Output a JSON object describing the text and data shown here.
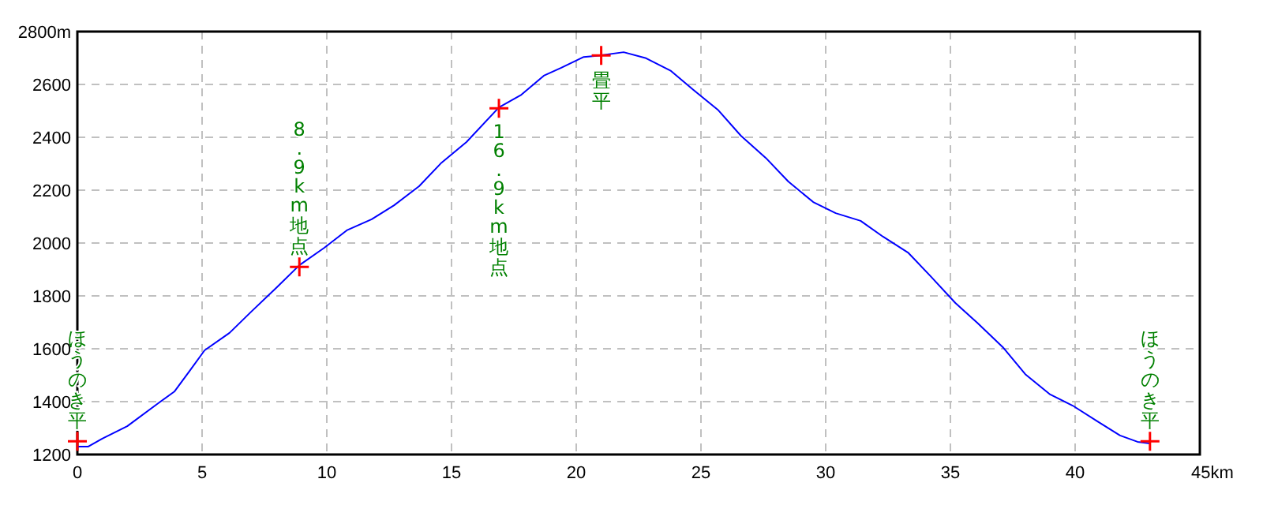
{
  "chart_data": {
    "type": "line",
    "xlim": [
      0,
      45
    ],
    "xticks": [
      0,
      5,
      10,
      15,
      20,
      25,
      30,
      35,
      40,
      {
        "value": 45,
        "label": "45km"
      }
    ],
    "ylim": [
      1200,
      2800
    ],
    "yticks": [
      1200,
      1400,
      1600,
      1800,
      2000,
      2200,
      2400,
      2600,
      {
        "value": 2800,
        "label": "2800m"
      }
    ],
    "grid": true,
    "line_style": "solid",
    "series": [
      {
        "color": "#0000ff",
        "marker": "none",
        "x": [
          0,
          0.44,
          1.0,
          2.0,
          3.2,
          3.9,
          4.5,
          5.1,
          6.1,
          7.0,
          8.0,
          8.9,
          9.9,
          10.8,
          11.8,
          12.7,
          13.7,
          14.6,
          15.6,
          16.9,
          17.8,
          18.7,
          19.4,
          20.3,
          21.0,
          21.9,
          22.8,
          23.8,
          24.7,
          25.7,
          26.6,
          27.6,
          28.5,
          29.5,
          30.4,
          31.4,
          32.3,
          33.3,
          34.2,
          35.2,
          36.1,
          37.1,
          38.0,
          39.0,
          39.9,
          40.9,
          41.8,
          42.5,
          43.0
        ],
        "values": [
          1230,
          1230,
          1260,
          1307,
          1391,
          1439,
          1516,
          1594,
          1660,
          1743,
          1833,
          1916,
          1982,
          2048,
          2090,
          2143,
          2215,
          2304,
          2382,
          2513,
          2561,
          2633,
          2663,
          2704,
          2710,
          2722,
          2699,
          2651,
          2579,
          2502,
          2406,
          2322,
          2233,
          2155,
          2113,
          2084,
          2024,
          1964,
          1875,
          1773,
          1696,
          1606,
          1504,
          1427,
          1385,
          1325,
          1272,
          1248,
          1242
        ]
      },
      {
        "type": "scatter",
        "color": "#ff0000",
        "marker": "cross",
        "x": [
          0,
          8.9,
          16.9,
          21.0,
          43.0
        ],
        "values": [
          1250,
          1910,
          2510,
          2710,
          1250
        ]
      }
    ],
    "annotations": [
      {
        "text": "ほうのき平",
        "x": 0,
        "y": 1250
      },
      {
        "text": "8.9km地点",
        "x": 8.9,
        "y": 1910
      },
      {
        "text": "16.9km地点",
        "x": 16.9,
        "y": 2510
      },
      {
        "text": "畳平",
        "x": 21.0,
        "y": 2710
      },
      {
        "text": "ほうのき平",
        "x": 43.0,
        "y": 1250
      }
    ]
  }
}
